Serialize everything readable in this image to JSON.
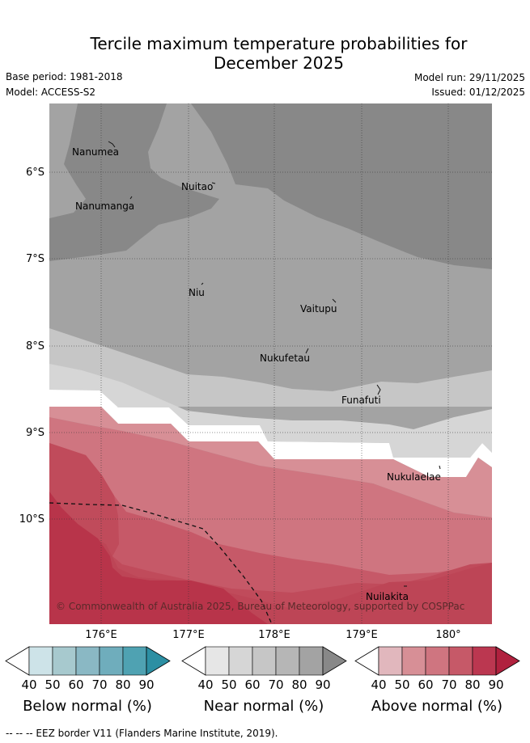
{
  "header": {
    "title_line1": "Tercile maximum temperature probabilities for",
    "title_line2": "December 2025",
    "base_period": "Base period: 1981-2018",
    "model": "Model: ACCESS-S2",
    "model_run": "Model run: 29/11/2025",
    "issued": "Issued: 01/12/2025"
  },
  "map": {
    "lat_labels": [
      "6°S",
      "7°S",
      "8°S",
      "9°S",
      "10°S"
    ],
    "lon_labels": [
      "176°E",
      "177°E",
      "178°E",
      "179°E",
      "180°"
    ],
    "places": [
      {
        "name": "Nanumea"
      },
      {
        "name": "Nanumanga"
      },
      {
        "name": "Nuitao"
      },
      {
        "name": "Niu"
      },
      {
        "name": "Vaitupu"
      },
      {
        "name": "Nukufetau"
      },
      {
        "name": "Funafuti"
      },
      {
        "name": "Nukulaelae"
      },
      {
        "name": "Nuilakita"
      }
    ],
    "copyright": "© Commonwealth of Australia 2025, Bureau of Meteorology, supported by COSPPac"
  },
  "legend": {
    "ticks": [
      "40",
      "50",
      "60",
      "70",
      "80",
      "90"
    ],
    "below": {
      "title": "Below normal (%)",
      "colors": [
        "#cde3e8",
        "#a7c9ce",
        "#8ab8c4",
        "#6fadbc",
        "#4fa2b2",
        "#2c8fa3"
      ]
    },
    "near": {
      "title": "Near normal (%)",
      "colors": [
        "#e6e6e6",
        "#d6d6d6",
        "#c6c6c6",
        "#b6b6b6",
        "#a3a3a3",
        "#888888"
      ]
    },
    "above": {
      "title": "Above normal (%)",
      "colors": [
        "#e1b7bd",
        "#d78f96",
        "#cf7580",
        "#c65968",
        "#bb3750",
        "#b0213e"
      ]
    }
  },
  "footer": "--  --  -- EEZ border V11 (Flanders Marine Institute, 2019)."
}
